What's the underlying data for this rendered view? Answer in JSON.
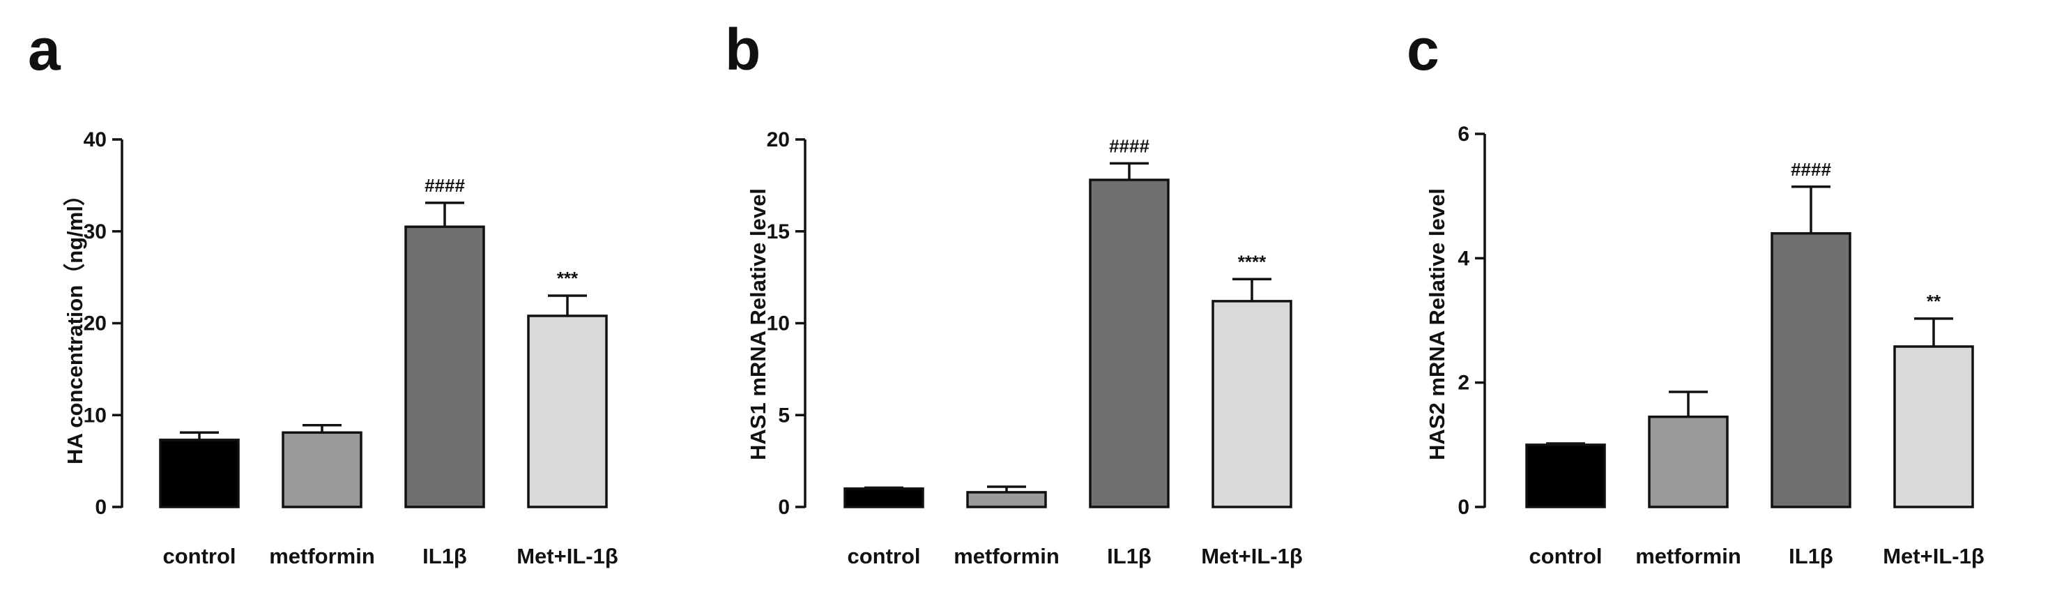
{
  "chart_data": [
    {
      "type": "bar",
      "panel": "a",
      "categories": [
        "control",
        "metformin",
        "IL1β",
        "Met+IL-1β"
      ],
      "values": [
        7.3,
        8.1,
        30.5,
        20.8
      ],
      "errors": [
        0.8,
        0.8,
        2.6,
        2.2
      ],
      "annotations": [
        "",
        "",
        "####",
        "***"
      ],
      "colors": [
        "#000000",
        "#9a9a9a",
        "#707070",
        "#d9d9d9"
      ],
      "ylabel": "HA concentration（ng/ml）",
      "ylim": [
        0,
        40
      ],
      "yticks": [
        0,
        10,
        20,
        30,
        40
      ],
      "ytick_labels": [
        "0",
        "10",
        "20",
        "30",
        "40"
      ],
      "grid": false
    },
    {
      "type": "bar",
      "panel": "b",
      "categories": [
        "control",
        "metformin",
        "IL1β",
        "Met+IL-1β"
      ],
      "values": [
        1.0,
        0.8,
        17.8,
        11.2
      ],
      "errors": [
        0.05,
        0.3,
        0.9,
        1.2
      ],
      "annotations": [
        "",
        "",
        "####",
        "****"
      ],
      "colors": [
        "#000000",
        "#9a9a9a",
        "#707070",
        "#d9d9d9"
      ],
      "ylabel": "HAS1 mRNA Relative level",
      "ylim": [
        0,
        20
      ],
      "yticks": [
        0,
        5,
        10,
        15,
        20
      ],
      "ytick_labels": [
        "0",
        "5",
        "10",
        "15",
        "20"
      ],
      "grid": false
    },
    {
      "type": "bar",
      "panel": "c",
      "categories": [
        "control",
        "metformin",
        "IL1β",
        "Met+IL-1β"
      ],
      "values": [
        1.0,
        1.45,
        4.4,
        2.58
      ],
      "errors": [
        0.02,
        0.4,
        0.75,
        0.45
      ],
      "annotations": [
        "",
        "",
        "####",
        "**"
      ],
      "colors": [
        "#000000",
        "#9a9a9a",
        "#707070",
        "#d9d9d9"
      ],
      "ylabel": "HAS2 mRNA Relative level",
      "ylim": [
        0,
        6
      ],
      "yticks": [
        0,
        2,
        4,
        6
      ],
      "ytick_labels": [
        "0",
        "2",
        "4",
        "6"
      ],
      "grid": false
    }
  ]
}
